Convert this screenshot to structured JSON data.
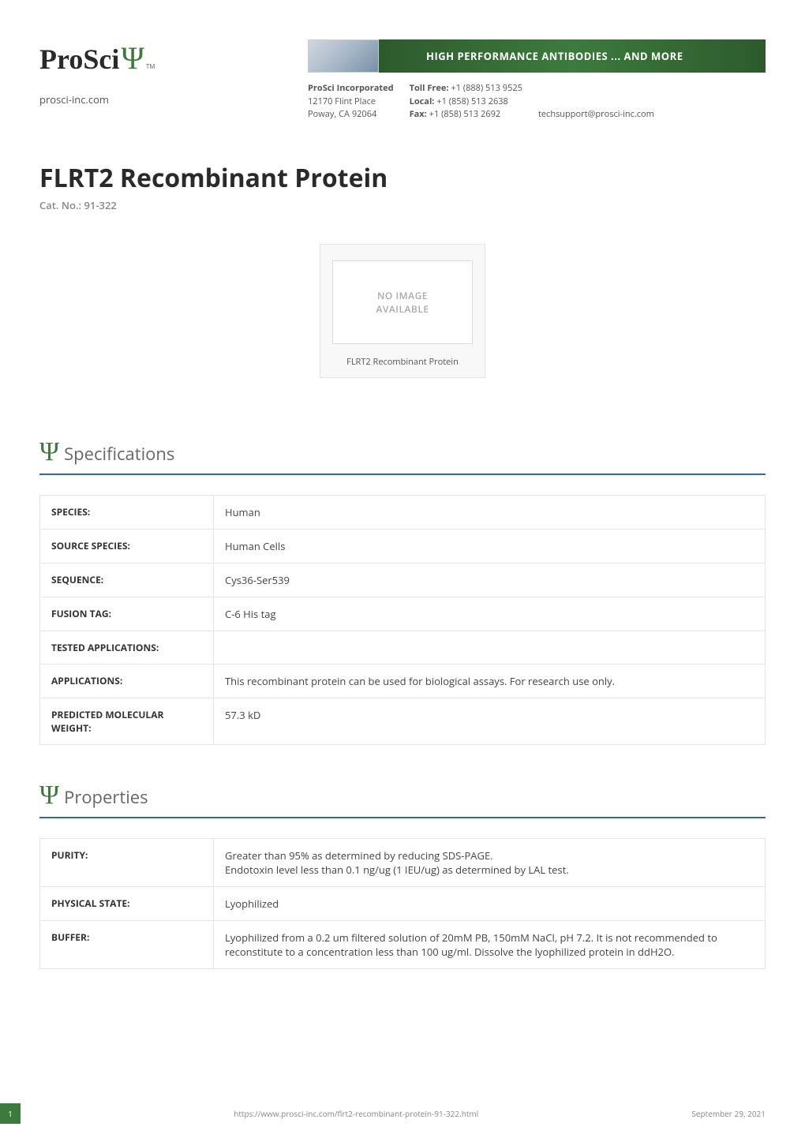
{
  "header": {
    "logo_text": "ProSci",
    "logo_psi": "Ψ",
    "logo_tm": "TM",
    "site": "prosci-inc.com",
    "banner_text": "HIGH PERFORMANCE ANTIBODIES ... AND MORE",
    "address": {
      "company": "ProSci Incorporated",
      "street": "12170 Flint Place",
      "city": "Poway, CA 92064"
    },
    "phones": {
      "tollfree_label": "Toll Free:",
      "tollfree": "+1 (888) 513 9525",
      "local_label": "Local:",
      "local": "+1 (858) 513 2638",
      "fax_label": "Fax:",
      "fax": "+1 (858) 513 2692"
    },
    "email": "techsupport@prosci-inc.com"
  },
  "title": {
    "product": "FLRT2 Recombinant Protein",
    "catno_label": "Cat. No.:",
    "catno": "91-322"
  },
  "image_card": {
    "no_image_line1": "NO IMAGE",
    "no_image_line2": "AVAILABLE",
    "caption": "FLRT2 Recombinant Protein"
  },
  "sections": {
    "specifications": {
      "psi": "Ψ",
      "title": "Specifications",
      "rows": [
        {
          "label": "SPECIES:",
          "value": "Human"
        },
        {
          "label": "SOURCE SPECIES:",
          "value": "Human Cells"
        },
        {
          "label": "SEQUENCE:",
          "value": "Cys36-Ser539"
        },
        {
          "label": "FUSION TAG:",
          "value": "C-6 His tag"
        },
        {
          "label": "TESTED APPLICATIONS:",
          "value": ""
        },
        {
          "label": "APPLICATIONS:",
          "value": "This recombinant protein can be used for biological assays. For research use only."
        },
        {
          "label": "PREDICTED MOLECULAR WEIGHT:",
          "value": "57.3 kD"
        }
      ]
    },
    "properties": {
      "psi": "Ψ",
      "title": "Properties",
      "rows": [
        {
          "label": "PURITY:",
          "value": "Greater than 95% as determined by reducing SDS-PAGE.\nEndotoxin level less than 0.1 ng/ug (1 IEU/ug) as determined by LAL test."
        },
        {
          "label": "PHYSICAL STATE:",
          "value": "Lyophilized"
        },
        {
          "label": "BUFFER:",
          "value": "Lyophilized from a 0.2 um filtered solution of 20mM PB, 150mM NaCl, pH 7.2. It is not recommended to reconstitute to a concentration less than 100 ug/ml. Dissolve the lyophilized protein in ddH2O."
        }
      ]
    }
  },
  "footer": {
    "page": "1",
    "url": "https://www.prosci-inc.com/flrt2-recombinant-protein-91-322.html",
    "date": "September 29, 2021"
  },
  "colors": {
    "green": "#3d7a3d",
    "green_dark": "#2d5a2d",
    "blue_rule": "#2d6aa3",
    "border": "#e5e5e5",
    "text": "#3a3a3a",
    "muted": "#888"
  }
}
